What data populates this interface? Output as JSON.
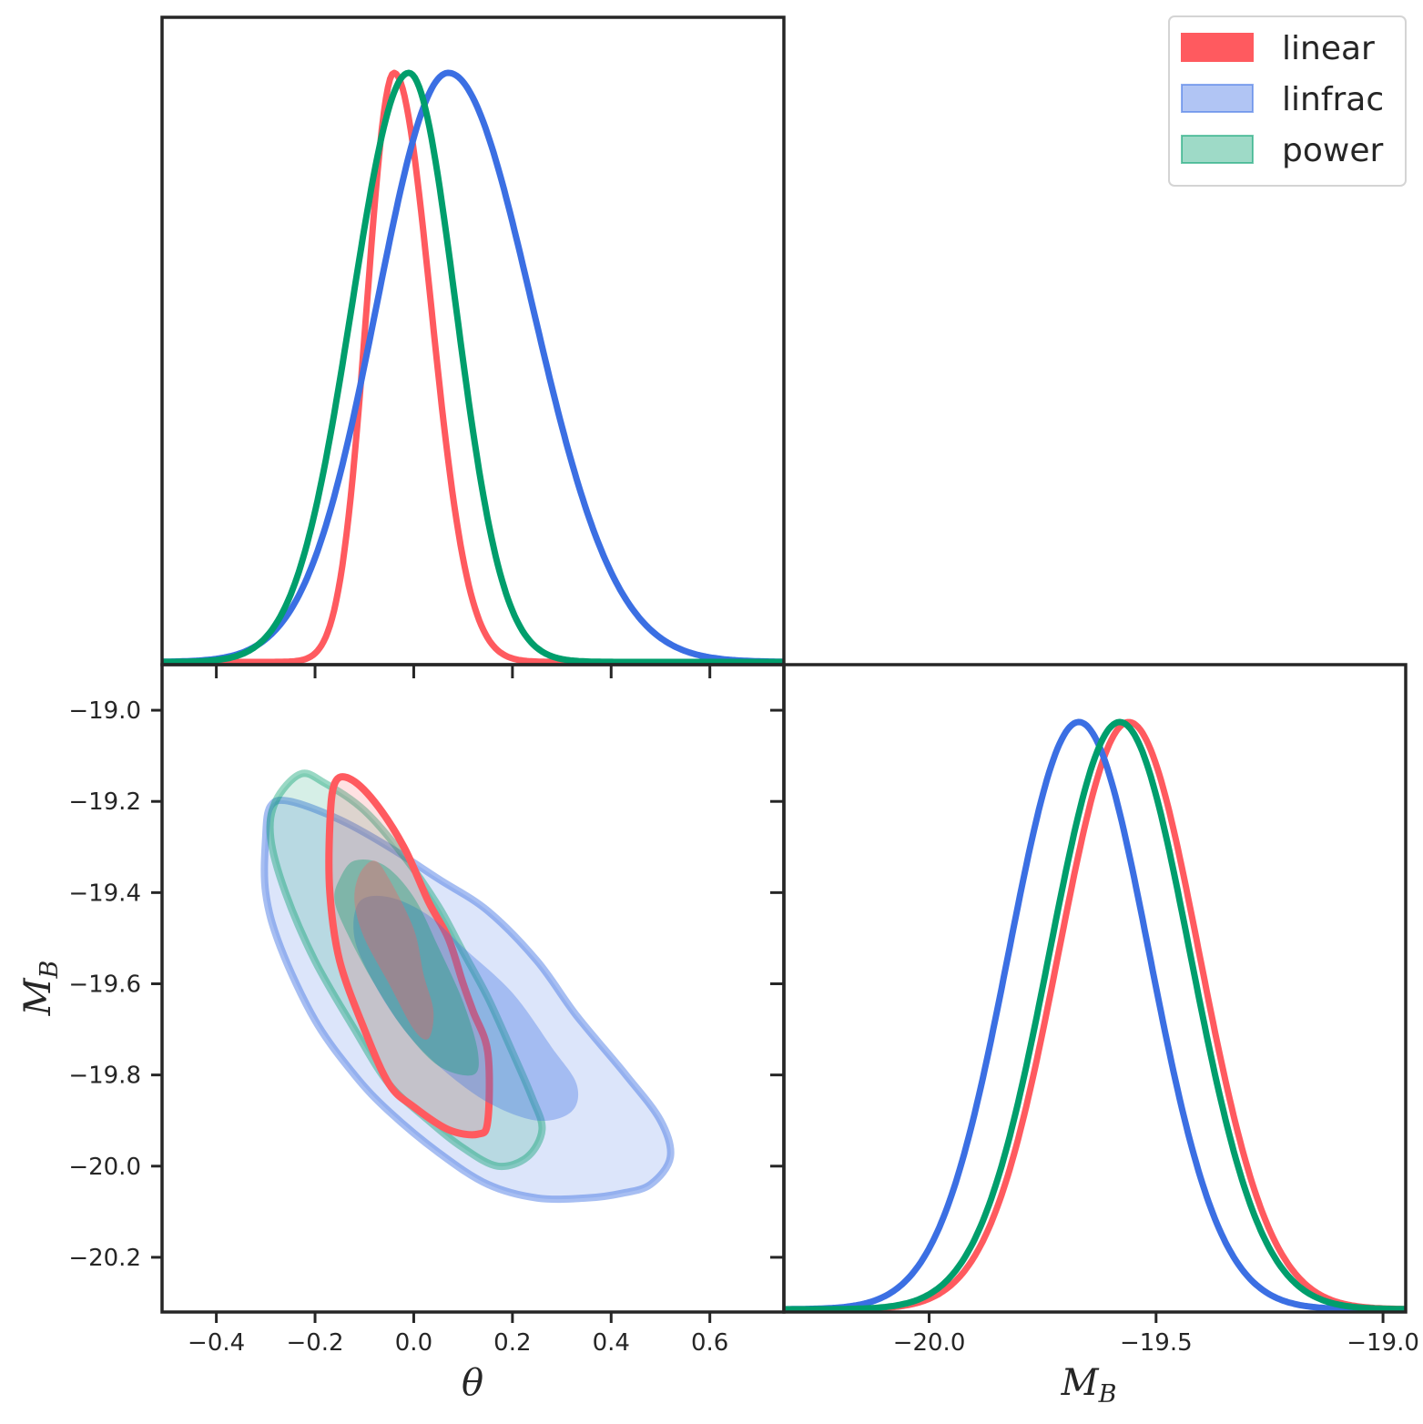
{
  "chart_data": {
    "type": "corner-plot",
    "parameters": [
      "θ",
      "M_B"
    ],
    "axis_labels": {
      "theta": {
        "main": "θ",
        "sub": ""
      },
      "mb": {
        "main": "M",
        "sub": "B"
      }
    },
    "axes": {
      "theta": {
        "range": [
          -0.51,
          0.75
        ],
        "ticks": [
          -0.4,
          -0.2,
          0.0,
          0.2,
          0.4,
          0.6
        ],
        "tick_labels": [
          "−0.4",
          "−0.2",
          "0.0",
          "0.2",
          "0.4",
          "0.6"
        ]
      },
      "mb_vertical": {
        "range": [
          -20.32,
          -18.9
        ],
        "ticks": [
          -19.0,
          -19.2,
          -19.4,
          -19.6,
          -19.8,
          -20.0,
          -20.2
        ],
        "tick_labels": [
          "−19.0",
          "−19.2",
          "−19.4",
          "−19.6",
          "−19.8",
          "−20.0",
          "−20.2"
        ]
      },
      "mb_horizontal": {
        "range": [
          -20.32,
          -18.95
        ],
        "ticks": [
          -20.0,
          -19.5,
          -19.0
        ],
        "tick_labels": [
          "−20.0",
          "−19.5",
          "−19.0"
        ]
      }
    },
    "legend": {
      "placement": "top-right",
      "entries": [
        {
          "label": "linear",
          "color": "#ff5a5f"
        },
        {
          "label": "linfrac",
          "color": "#3b6fe3"
        },
        {
          "label": "power",
          "color": "#009e6c"
        }
      ]
    },
    "series": [
      {
        "name": "linear",
        "color": "#ff5a5f",
        "theta_marginal": {
          "peak": -0.04,
          "sigma_left": 0.055,
          "sigma_right": 0.075
        },
        "mb_marginal": {
          "peak": -19.56,
          "sigma": 0.155
        },
        "contours": {
          "inner": [
            [
              -0.08,
              -19.33
            ],
            [
              -0.05,
              -19.37
            ],
            [
              0.0,
              -19.48
            ],
            [
              0.02,
              -19.58
            ],
            [
              0.04,
              -19.66
            ],
            [
              0.03,
              -19.72
            ],
            [
              0.0,
              -19.7
            ],
            [
              -0.05,
              -19.6
            ],
            [
              -0.1,
              -19.5
            ],
            [
              -0.12,
              -19.42
            ],
            [
              -0.11,
              -19.36
            ]
          ],
          "outer": [
            [
              -0.16,
              -19.16
            ],
            [
              -0.13,
              -19.15
            ],
            [
              -0.08,
              -19.2
            ],
            [
              -0.02,
              -19.3
            ],
            [
              0.03,
              -19.42
            ],
            [
              0.07,
              -19.5
            ],
            [
              0.1,
              -19.6
            ],
            [
              0.12,
              -19.66
            ],
            [
              0.15,
              -19.75
            ],
            [
              0.15,
              -19.9
            ],
            [
              0.13,
              -19.93
            ],
            [
              0.07,
              -19.92
            ],
            [
              0.0,
              -19.87
            ],
            [
              -0.05,
              -19.82
            ],
            [
              -0.1,
              -19.7
            ],
            [
              -0.15,
              -19.55
            ],
            [
              -0.17,
              -19.4
            ],
            [
              -0.17,
              -19.25
            ]
          ]
        }
      },
      {
        "name": "linfrac",
        "color": "#3b6fe3",
        "theta_marginal": {
          "peak": 0.07,
          "sigma_left": 0.145,
          "sigma_right": 0.17
        },
        "mb_marginal": {
          "peak": -19.67,
          "sigma": 0.155
        },
        "contours": {
          "inner": [
            [
              -0.11,
              -19.42
            ],
            [
              -0.05,
              -19.41
            ],
            [
              0.03,
              -19.45
            ],
            [
              0.1,
              -19.52
            ],
            [
              0.2,
              -19.62
            ],
            [
              0.28,
              -19.74
            ],
            [
              0.33,
              -19.82
            ],
            [
              0.32,
              -19.88
            ],
            [
              0.25,
              -19.9
            ],
            [
              0.15,
              -19.86
            ],
            [
              0.05,
              -19.78
            ],
            [
              -0.02,
              -19.7
            ],
            [
              -0.08,
              -19.6
            ],
            [
              -0.12,
              -19.5
            ]
          ],
          "outer": [
            [
              -0.29,
              -19.21
            ],
            [
              -0.25,
              -19.2
            ],
            [
              -0.15,
              -19.24
            ],
            [
              -0.05,
              -19.3
            ],
            [
              0.05,
              -19.37
            ],
            [
              0.15,
              -19.44
            ],
            [
              0.25,
              -19.55
            ],
            [
              0.33,
              -19.67
            ],
            [
              0.43,
              -19.8
            ],
            [
              0.5,
              -19.9
            ],
            [
              0.52,
              -19.98
            ],
            [
              0.48,
              -20.04
            ],
            [
              0.42,
              -20.06
            ],
            [
              0.35,
              -20.07
            ],
            [
              0.25,
              -20.07
            ],
            [
              0.15,
              -20.04
            ],
            [
              0.05,
              -19.97
            ],
            [
              -0.05,
              -19.88
            ],
            [
              -0.12,
              -19.8
            ],
            [
              -0.2,
              -19.68
            ],
            [
              -0.27,
              -19.52
            ],
            [
              -0.3,
              -19.4
            ],
            [
              -0.3,
              -19.28
            ]
          ]
        }
      },
      {
        "name": "power",
        "color": "#009e6c",
        "theta_marginal": {
          "peak": -0.01,
          "sigma_left": 0.115,
          "sigma_right": 0.095
        },
        "mb_marginal": {
          "peak": -19.58,
          "sigma": 0.155
        },
        "contours": {
          "inner": [
            [
              -0.15,
              -19.37
            ],
            [
              -0.12,
              -19.33
            ],
            [
              -0.06,
              -19.34
            ],
            [
              0.0,
              -19.41
            ],
            [
              0.05,
              -19.52
            ],
            [
              0.1,
              -19.64
            ],
            [
              0.13,
              -19.75
            ],
            [
              0.12,
              -19.8
            ],
            [
              0.05,
              -19.78
            ],
            [
              -0.02,
              -19.7
            ],
            [
              -0.08,
              -19.6
            ],
            [
              -0.13,
              -19.5
            ],
            [
              -0.16,
              -19.42
            ]
          ],
          "outer": [
            [
              -0.28,
              -19.2
            ],
            [
              -0.23,
              -19.14
            ],
            [
              -0.18,
              -19.16
            ],
            [
              -0.1,
              -19.22
            ],
            [
              -0.02,
              -19.32
            ],
            [
              0.05,
              -19.43
            ],
            [
              0.1,
              -19.53
            ],
            [
              0.15,
              -19.63
            ],
            [
              0.2,
              -19.75
            ],
            [
              0.24,
              -19.85
            ],
            [
              0.26,
              -19.92
            ],
            [
              0.23,
              -19.98
            ],
            [
              0.17,
              -20.0
            ],
            [
              0.1,
              -19.96
            ],
            [
              0.03,
              -19.9
            ],
            [
              -0.05,
              -19.82
            ],
            [
              -0.12,
              -19.7
            ],
            [
              -0.2,
              -19.55
            ],
            [
              -0.26,
              -19.4
            ],
            [
              -0.29,
              -19.28
            ]
          ]
        }
      }
    ]
  }
}
